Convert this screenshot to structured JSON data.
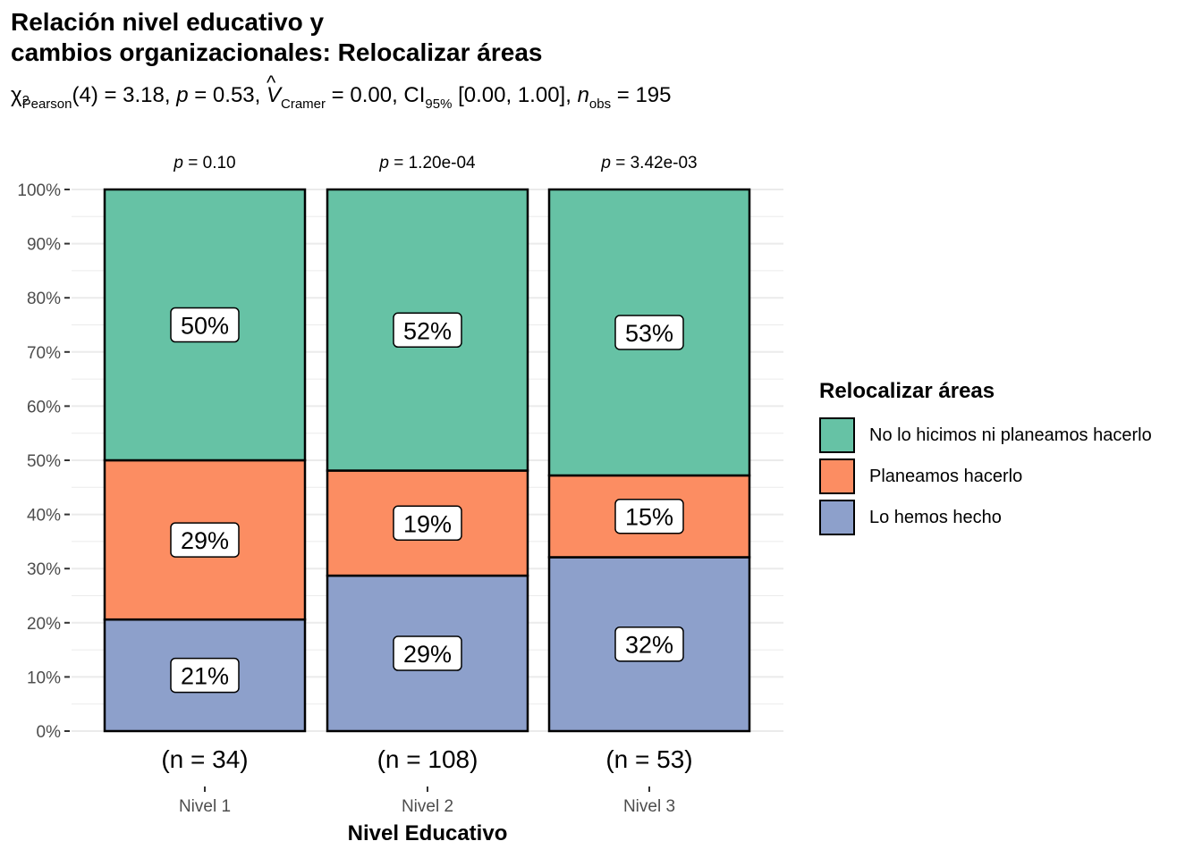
{
  "title_lines": [
    "Relación nivel educativo y",
    "cambios organizacionales: Relocalizar áreas"
  ],
  "subtitle": {
    "chi": "χ",
    "chi_sup": "2",
    "chi_sub": "Pearson",
    "part1": "(4) = 3.18, ",
    "p_sym": "p",
    "part2": " = 0.53, ",
    "v_sym": "V",
    "v_sub": "Cramer",
    "part3": " = 0.00, CI",
    "ci_sub": "95%",
    "part4": " [0.00, 1.00], ",
    "n_sym": "n",
    "n_sub": "obs",
    "part5": " = 195"
  },
  "colors": {
    "no_lo_hicimos": "#66C2A5",
    "planeamos": "#FC8D62",
    "lo_hemos": "#8DA0CB",
    "grid": "#EBEBEB"
  },
  "chart_data": {
    "type": "bar",
    "stacked": true,
    "percent": true,
    "categories": [
      "Nivel 1",
      "Nivel 2",
      "Nivel 3"
    ],
    "xlabel": "Nivel Educativo",
    "ylabel": "",
    "ylim": [
      0,
      100
    ],
    "yticks": [
      "0%",
      "10%",
      "20%",
      "30%",
      "40%",
      "50%",
      "60%",
      "70%",
      "80%",
      "90%",
      "100%"
    ],
    "n_labels": [
      "(n = 34)",
      "(n = 108)",
      "(n = 53)"
    ],
    "p_labels": [
      "= 0.10",
      "= 1.20e-04",
      "= 3.42e-03"
    ],
    "p_symbol": "p",
    "legend_title": "Relocalizar áreas",
    "series": [
      {
        "name": "Lo hemos hecho",
        "color_key": "lo_hemos",
        "values": [
          20.6,
          28.7,
          32.1
        ],
        "labels": [
          "21%",
          "29%",
          "32%"
        ]
      },
      {
        "name": "Planeamos hacerlo",
        "color_key": "planeamos",
        "values": [
          29.4,
          19.4,
          15.1
        ],
        "labels": [
          "29%",
          "19%",
          "15%"
        ]
      },
      {
        "name": "No lo hicimos ni planeamos hacerlo",
        "color_key": "no_lo_hicimos",
        "values": [
          50.0,
          51.9,
          52.8
        ],
        "labels": [
          "50%",
          "52%",
          "53%"
        ]
      }
    ],
    "legend_order": [
      "No lo hicimos ni planeamos hacerlo",
      "Planeamos hacerlo",
      "Lo hemos hecho"
    ],
    "grid": true
  }
}
